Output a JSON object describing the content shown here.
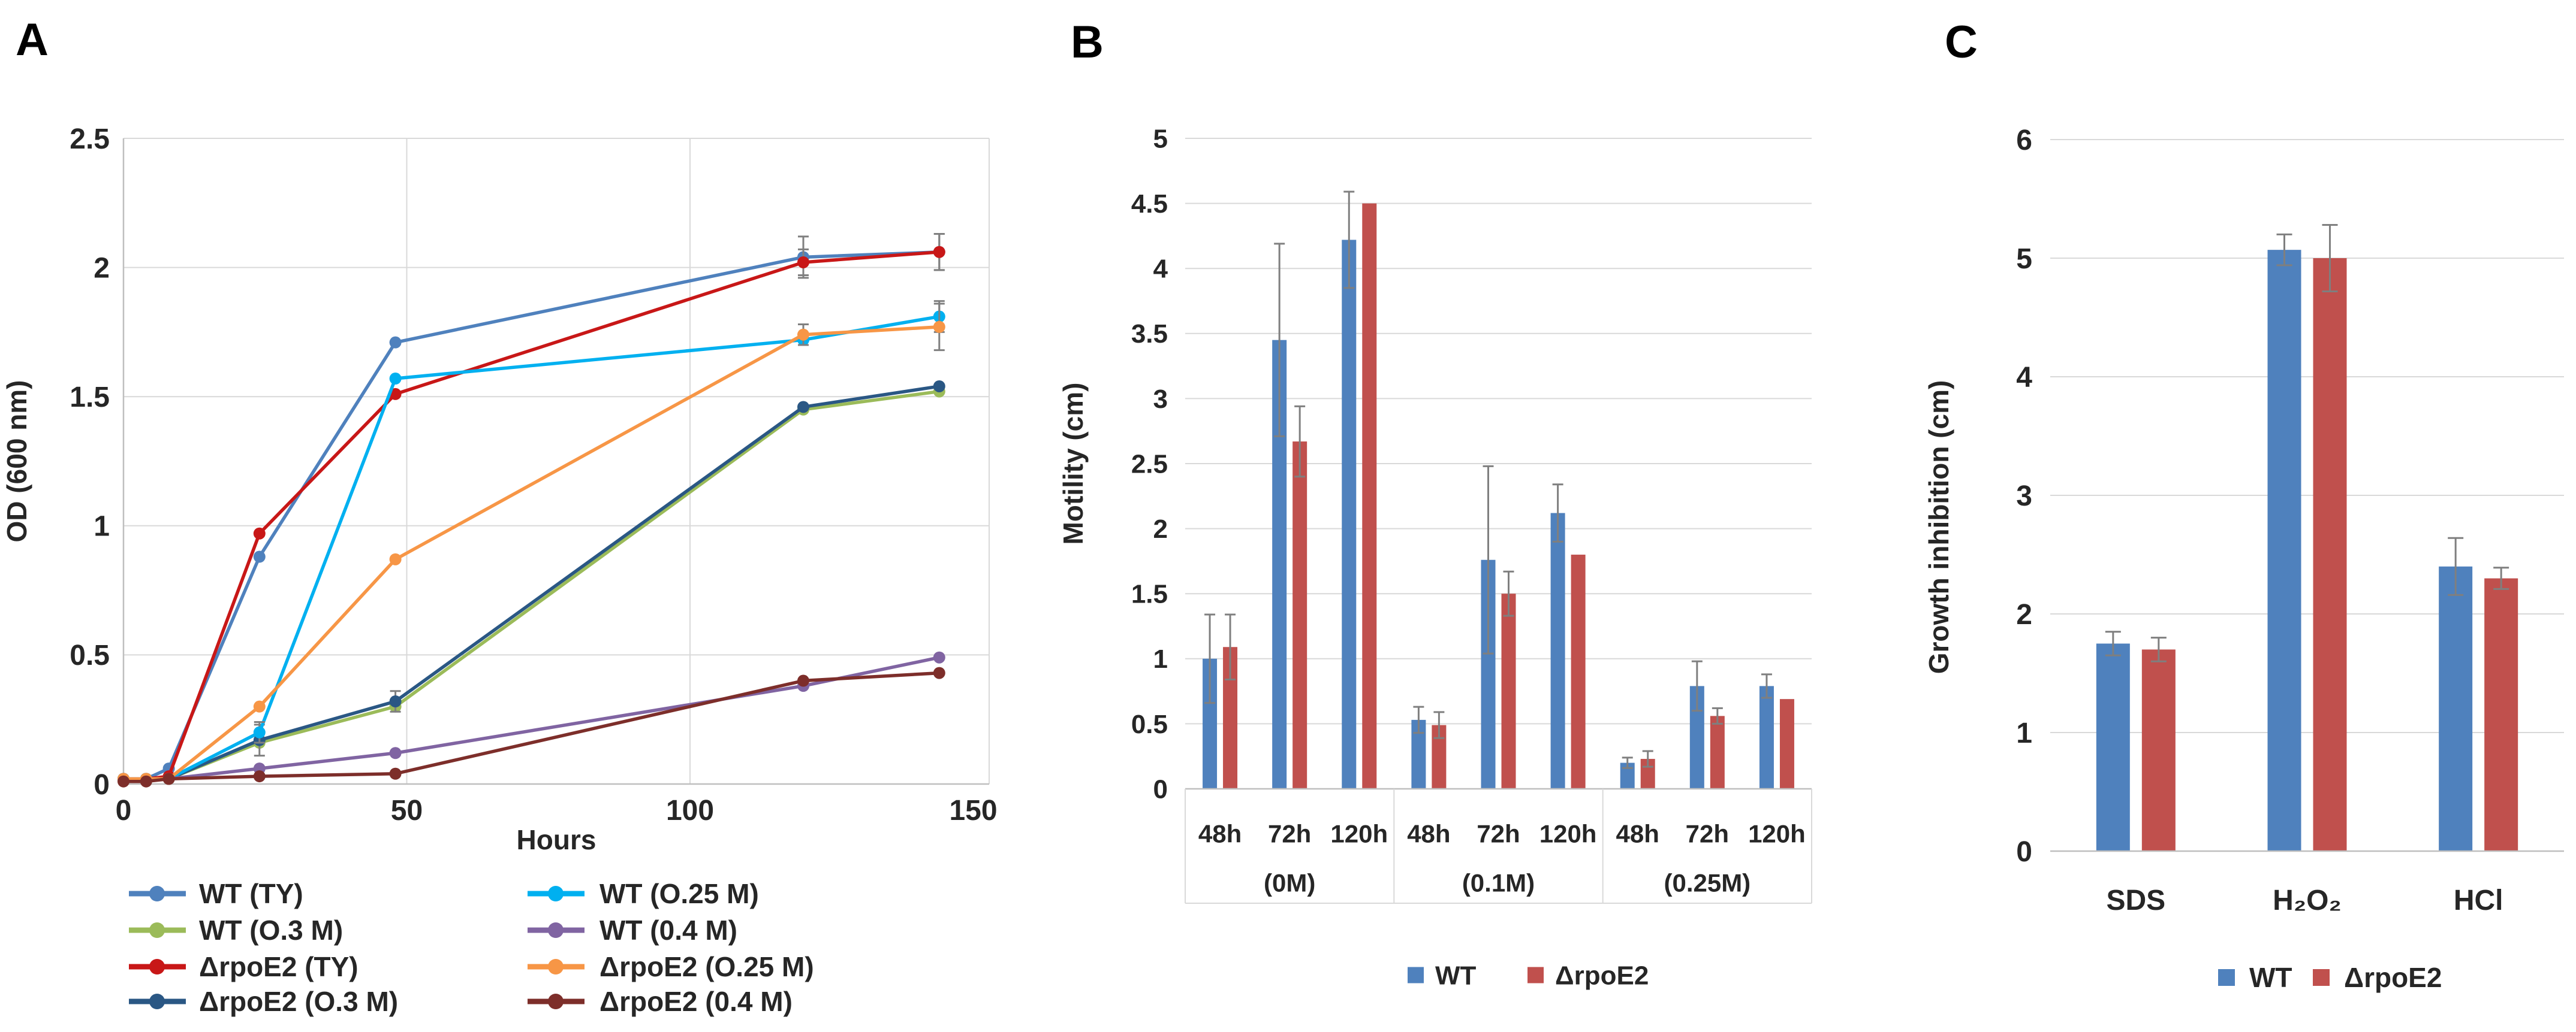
{
  "panels": [
    {
      "label": "A"
    },
    {
      "label": "B"
    },
    {
      "label": "C"
    }
  ],
  "colors": {
    "wt_bar": "#4F81BD",
    "rpoe2_bar": "#C0504D",
    "grid": "#D9D9D9",
    "axis": "#BFBFBF",
    "error_bar": "#7F7F7F",
    "text": "#262626"
  },
  "chart_data": [
    {
      "id": "A",
      "type": "line",
      "title": "",
      "xlabel": "Hours",
      "ylabel": "OD (600 nm)",
      "xlim": [
        0,
        150
      ],
      "ylim": [
        0,
        2.5
      ],
      "xticks": [
        0,
        50,
        100,
        150
      ],
      "yticks": [
        0,
        0.5,
        1,
        1.5,
        2,
        2.5
      ],
      "grid": true,
      "legend_position": "below plot, two columns",
      "x": [
        0,
        4,
        8,
        24,
        48,
        120,
        144
      ],
      "series": [
        {
          "name": "WT   (TY)",
          "color": "#4F81BD",
          "values": [
            0.02,
            0.02,
            0.06,
            0.88,
            1.71,
            2.04,
            2.06
          ],
          "errors": [
            0,
            0,
            0,
            0,
            0,
            0.08,
            0.07
          ]
        },
        {
          "name": "WT  (O.3 M)",
          "color": "#9BBB59",
          "values": [
            0.02,
            0.02,
            0.02,
            0.16,
            0.3,
            1.45,
            1.52
          ],
          "errors": [
            0,
            0,
            0,
            0,
            0,
            0,
            0
          ]
        },
        {
          "name": "ΔrpoE2   (TY)",
          "color": "#C81717",
          "values": [
            0.02,
            0.02,
            0.03,
            0.97,
            1.51,
            2.02,
            2.06
          ],
          "errors": [
            0,
            0,
            0,
            0,
            0,
            0.05,
            0.07
          ]
        },
        {
          "name": "ΔrpoE2  (O.3 M)",
          "color": "#2A5784",
          "values": [
            0.02,
            0.02,
            0.02,
            0.17,
            0.32,
            1.46,
            1.54
          ],
          "errors": [
            0,
            0,
            0,
            0.06,
            0.04,
            0,
            0
          ]
        },
        {
          "name": "WT   (O.25 M)",
          "color": "#00B0F0",
          "values": [
            0.02,
            0.02,
            0.02,
            0.2,
            1.57,
            1.72,
            1.81
          ],
          "errors": [
            0,
            0,
            0,
            0.04,
            0,
            0,
            0.06
          ]
        },
        {
          "name": "WT  (0.4 M)",
          "color": "#8064A2",
          "values": [
            0.02,
            0.02,
            0.02,
            0.06,
            0.12,
            0.38,
            0.49
          ],
          "errors": [
            0,
            0,
            0,
            0,
            0,
            0,
            0
          ]
        },
        {
          "name": "ΔrpoE2  (O.25 M)",
          "color": "#F79646",
          "values": [
            0.02,
            0.02,
            0.02,
            0.3,
            0.87,
            1.74,
            1.77
          ],
          "errors": [
            0,
            0,
            0,
            0,
            0,
            0.04,
            0.09
          ]
        },
        {
          "name": "ΔrpoE2 (0.4 M)",
          "color": "#7D2E2A",
          "values": [
            0.01,
            0.01,
            0.02,
            0.03,
            0.04,
            0.4,
            0.43
          ],
          "errors": [
            0,
            0,
            0,
            0,
            0,
            0,
            0
          ]
        }
      ],
      "legend_columns": [
        [
          0,
          1,
          2,
          3
        ],
        [
          4,
          5,
          6,
          7
        ]
      ]
    },
    {
      "id": "B",
      "type": "bar",
      "title": "",
      "xlabel": "",
      "ylabel": "Motility (cm)",
      "ylim": [
        0,
        5
      ],
      "yticks": [
        0,
        0.5,
        1,
        1.5,
        2,
        2.5,
        3,
        3.5,
        4,
        4.5,
        5
      ],
      "grid": true,
      "legend_position": "bottom",
      "categories": [
        "48h",
        "72h",
        "120h",
        "48h",
        "72h",
        "120h",
        "48h",
        "72h",
        "120h"
      ],
      "group_labels": [
        "(0M)",
        "(0.1M)",
        "(0.25M)"
      ],
      "categories_per_group": 3,
      "series": [
        {
          "name": "WT",
          "color": "#4F81BD",
          "values": [
            1.0,
            3.45,
            4.22,
            0.53,
            1.76,
            2.12,
            0.2,
            0.79,
            0.79
          ],
          "errors": [
            0.34,
            0.74,
            0.37,
            0.1,
            0.72,
            0.22,
            0.04,
            0.19,
            0.09
          ]
        },
        {
          "name": "ΔrpoE2",
          "color": "#C0504D",
          "values": [
            1.09,
            2.67,
            4.5,
            0.49,
            1.5,
            1.8,
            0.23,
            0.56,
            0.69
          ],
          "errors": [
            0.25,
            0.27,
            0,
            0.1,
            0.17,
            0,
            0.06,
            0.06,
            0
          ]
        }
      ]
    },
    {
      "id": "C",
      "type": "bar",
      "title": "",
      "xlabel": "",
      "ylabel": "Growth inhibition (cm)",
      "ylim": [
        0,
        6
      ],
      "yticks": [
        0,
        1,
        2,
        3,
        4,
        5,
        6
      ],
      "grid": true,
      "legend_position": "bottom",
      "categories": [
        "SDS",
        "H₂O₂",
        "HCl"
      ],
      "series": [
        {
          "name": "WT",
          "color": "#4F81BD",
          "values": [
            1.75,
            5.07,
            2.4
          ],
          "errors": [
            0.1,
            0.13,
            0.24
          ]
        },
        {
          "name": "ΔrpoE2",
          "color": "#C0504D",
          "values": [
            1.7,
            5.0,
            2.3
          ],
          "errors": [
            0.1,
            0.28,
            0.09
          ]
        }
      ]
    }
  ]
}
